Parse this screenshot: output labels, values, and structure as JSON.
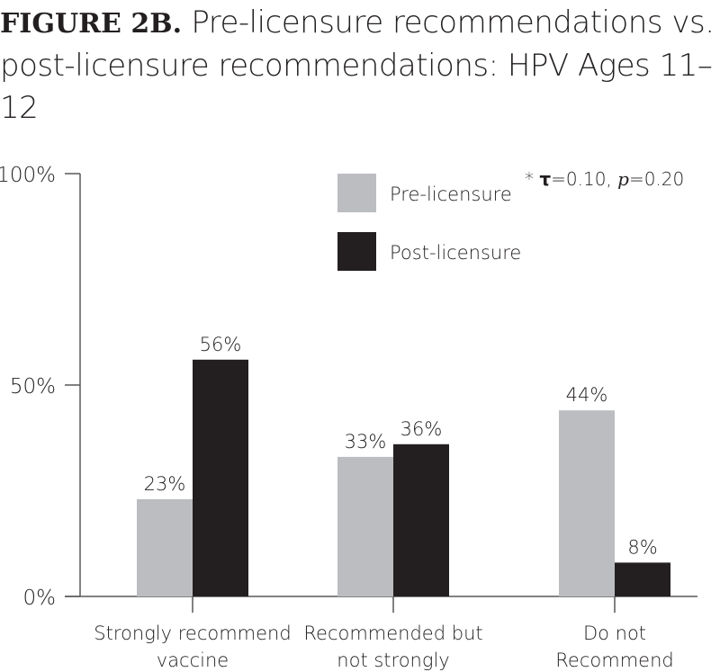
{
  "chart_data": {
    "type": "bar",
    "title_prefix": "FIGURE 2B.",
    "title": "Pre-licensure recommendations vs. post-licensure recommendations: HPV Ages 11–12",
    "categories": [
      [
        "Strongly recommend",
        "vaccine"
      ],
      [
        "Recommended but",
        "not strongly"
      ],
      [
        "Do not",
        "Recommend"
      ]
    ],
    "series": [
      {
        "name": "Pre-licensure",
        "values": [
          23,
          33,
          44
        ],
        "labels": [
          "23%",
          "33%",
          "44%"
        ],
        "color": "#bcbdc0"
      },
      {
        "name": "Post-licensure",
        "values": [
          56,
          36,
          8
        ],
        "labels": [
          "56%",
          "36%",
          "8%"
        ],
        "color": "#231f20"
      }
    ],
    "ylim": [
      0,
      100
    ],
    "yticks": [
      0,
      50,
      100
    ],
    "ytick_labels": [
      "0%",
      "50%",
      "100%"
    ],
    "annotation": {
      "star": "*",
      "tau": "τ",
      "text1": "=0.10, ",
      "p": "p",
      "text2": "=0.20"
    },
    "legend_placement": "top-center",
    "grid": false
  }
}
